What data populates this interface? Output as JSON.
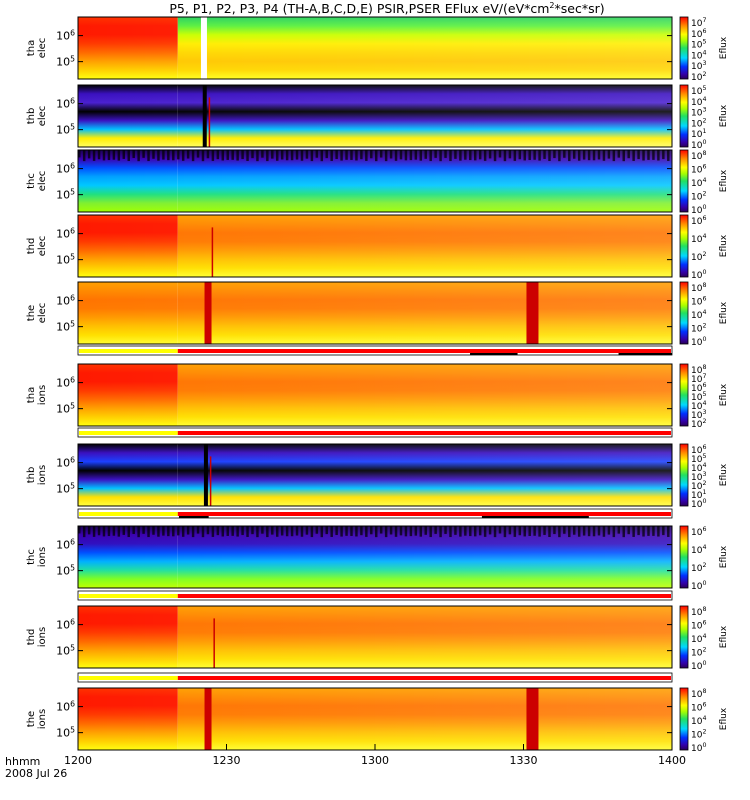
{
  "chart_data": {
    "type": "heatmap",
    "title": "P5, P1, P2, P3, P4 (TH-A,B,C,D,E) PSIR,PSER EFlux eV/(eV*cm^2*sec*sr)",
    "title_parts": {
      "prefix": "P5, P1, P2, P3, P4 (TH-A,B,C,D,E) PSIR,PSER EFlux eV/(eV*cm",
      "superscript": "2",
      "suffix": "*sec*sr)"
    },
    "x_axis": {
      "label": "hhmm",
      "date": "2008 Jul 26",
      "range": [
        "12:00",
        "14:00"
      ],
      "ticks": [
        "1200",
        "1230",
        "1300",
        "1330",
        "1400"
      ]
    },
    "colorbar_label": "Eflux",
    "panels": [
      {
        "probe": "tha",
        "species": "elec",
        "y_ticks": [
          "10^6",
          "10^5"
        ],
        "cbar_ticks": [
          "10^7",
          "10^6",
          "10^5",
          "10^4",
          "10^3",
          "10^2"
        ]
      },
      {
        "probe": "thb",
        "species": "elec",
        "y_ticks": [
          "10^6",
          "10^5"
        ],
        "cbar_ticks": [
          "10^5",
          "10^4",
          "10^3",
          "10^2",
          "10^1",
          "10^0"
        ]
      },
      {
        "probe": "thc",
        "species": "elec",
        "y_ticks": [
          "10^6",
          "10^5"
        ],
        "cbar_ticks": [
          "10^8",
          "10^6",
          "10^4",
          "10^2",
          "10^0"
        ]
      },
      {
        "probe": "thd",
        "species": "elec",
        "y_ticks": [
          "10^6",
          "10^5"
        ],
        "cbar_ticks": [
          "10^6",
          "10^4",
          "10^2",
          "10^0"
        ]
      },
      {
        "probe": "the",
        "species": "elec",
        "y_ticks": [
          "10^6",
          "10^5"
        ],
        "cbar_ticks": [
          "10^8",
          "10^6",
          "10^4",
          "10^2",
          "10^0"
        ]
      },
      {
        "probe": "tha",
        "species": "ions",
        "y_ticks": [
          "10^6",
          "10^5"
        ],
        "cbar_ticks": [
          "10^8",
          "10^7",
          "10^6",
          "10^5",
          "10^4",
          "10^3",
          "10^2"
        ]
      },
      {
        "probe": "thb",
        "species": "ions",
        "y_ticks": [
          "10^6",
          "10^5"
        ],
        "cbar_ticks": [
          "10^6",
          "10^5",
          "10^4",
          "10^3",
          "10^2",
          "10^1",
          "10^0"
        ]
      },
      {
        "probe": "thc",
        "species": "ions",
        "y_ticks": [
          "10^6",
          "10^5"
        ],
        "cbar_ticks": [
          "10^6",
          "10^4",
          "10^2",
          "10^0"
        ]
      },
      {
        "probe": "thd",
        "species": "ions",
        "y_ticks": [
          "10^6",
          "10^5"
        ],
        "cbar_ticks": [
          "10^8",
          "10^6",
          "10^4",
          "10^2",
          "10^0"
        ]
      },
      {
        "probe": "the",
        "species": "ions",
        "y_ticks": [
          "10^6",
          "10^5"
        ],
        "cbar_ticks": [
          "10^8",
          "10^6",
          "10^4",
          "10^2",
          "10^0"
        ]
      }
    ],
    "mode_bar_colors": {
      "slow": "#ffff00",
      "fast": "#ff0000",
      "burst": "#000000"
    },
    "mode_switch_time": "12:16"
  }
}
